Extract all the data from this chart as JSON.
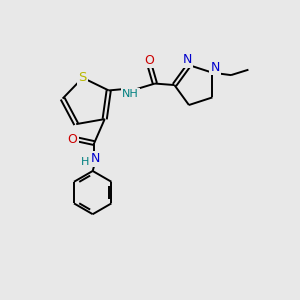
{
  "bg_color": "#e8e8e8",
  "bond_color": "#000000",
  "S_color": "#b8b800",
  "N_color": "#0000cc",
  "O_color": "#cc0000",
  "NH_color": "#008080",
  "lw": 1.4,
  "fs": 8.0,
  "xlim": [
    0,
    10
  ],
  "ylim": [
    0,
    10
  ]
}
